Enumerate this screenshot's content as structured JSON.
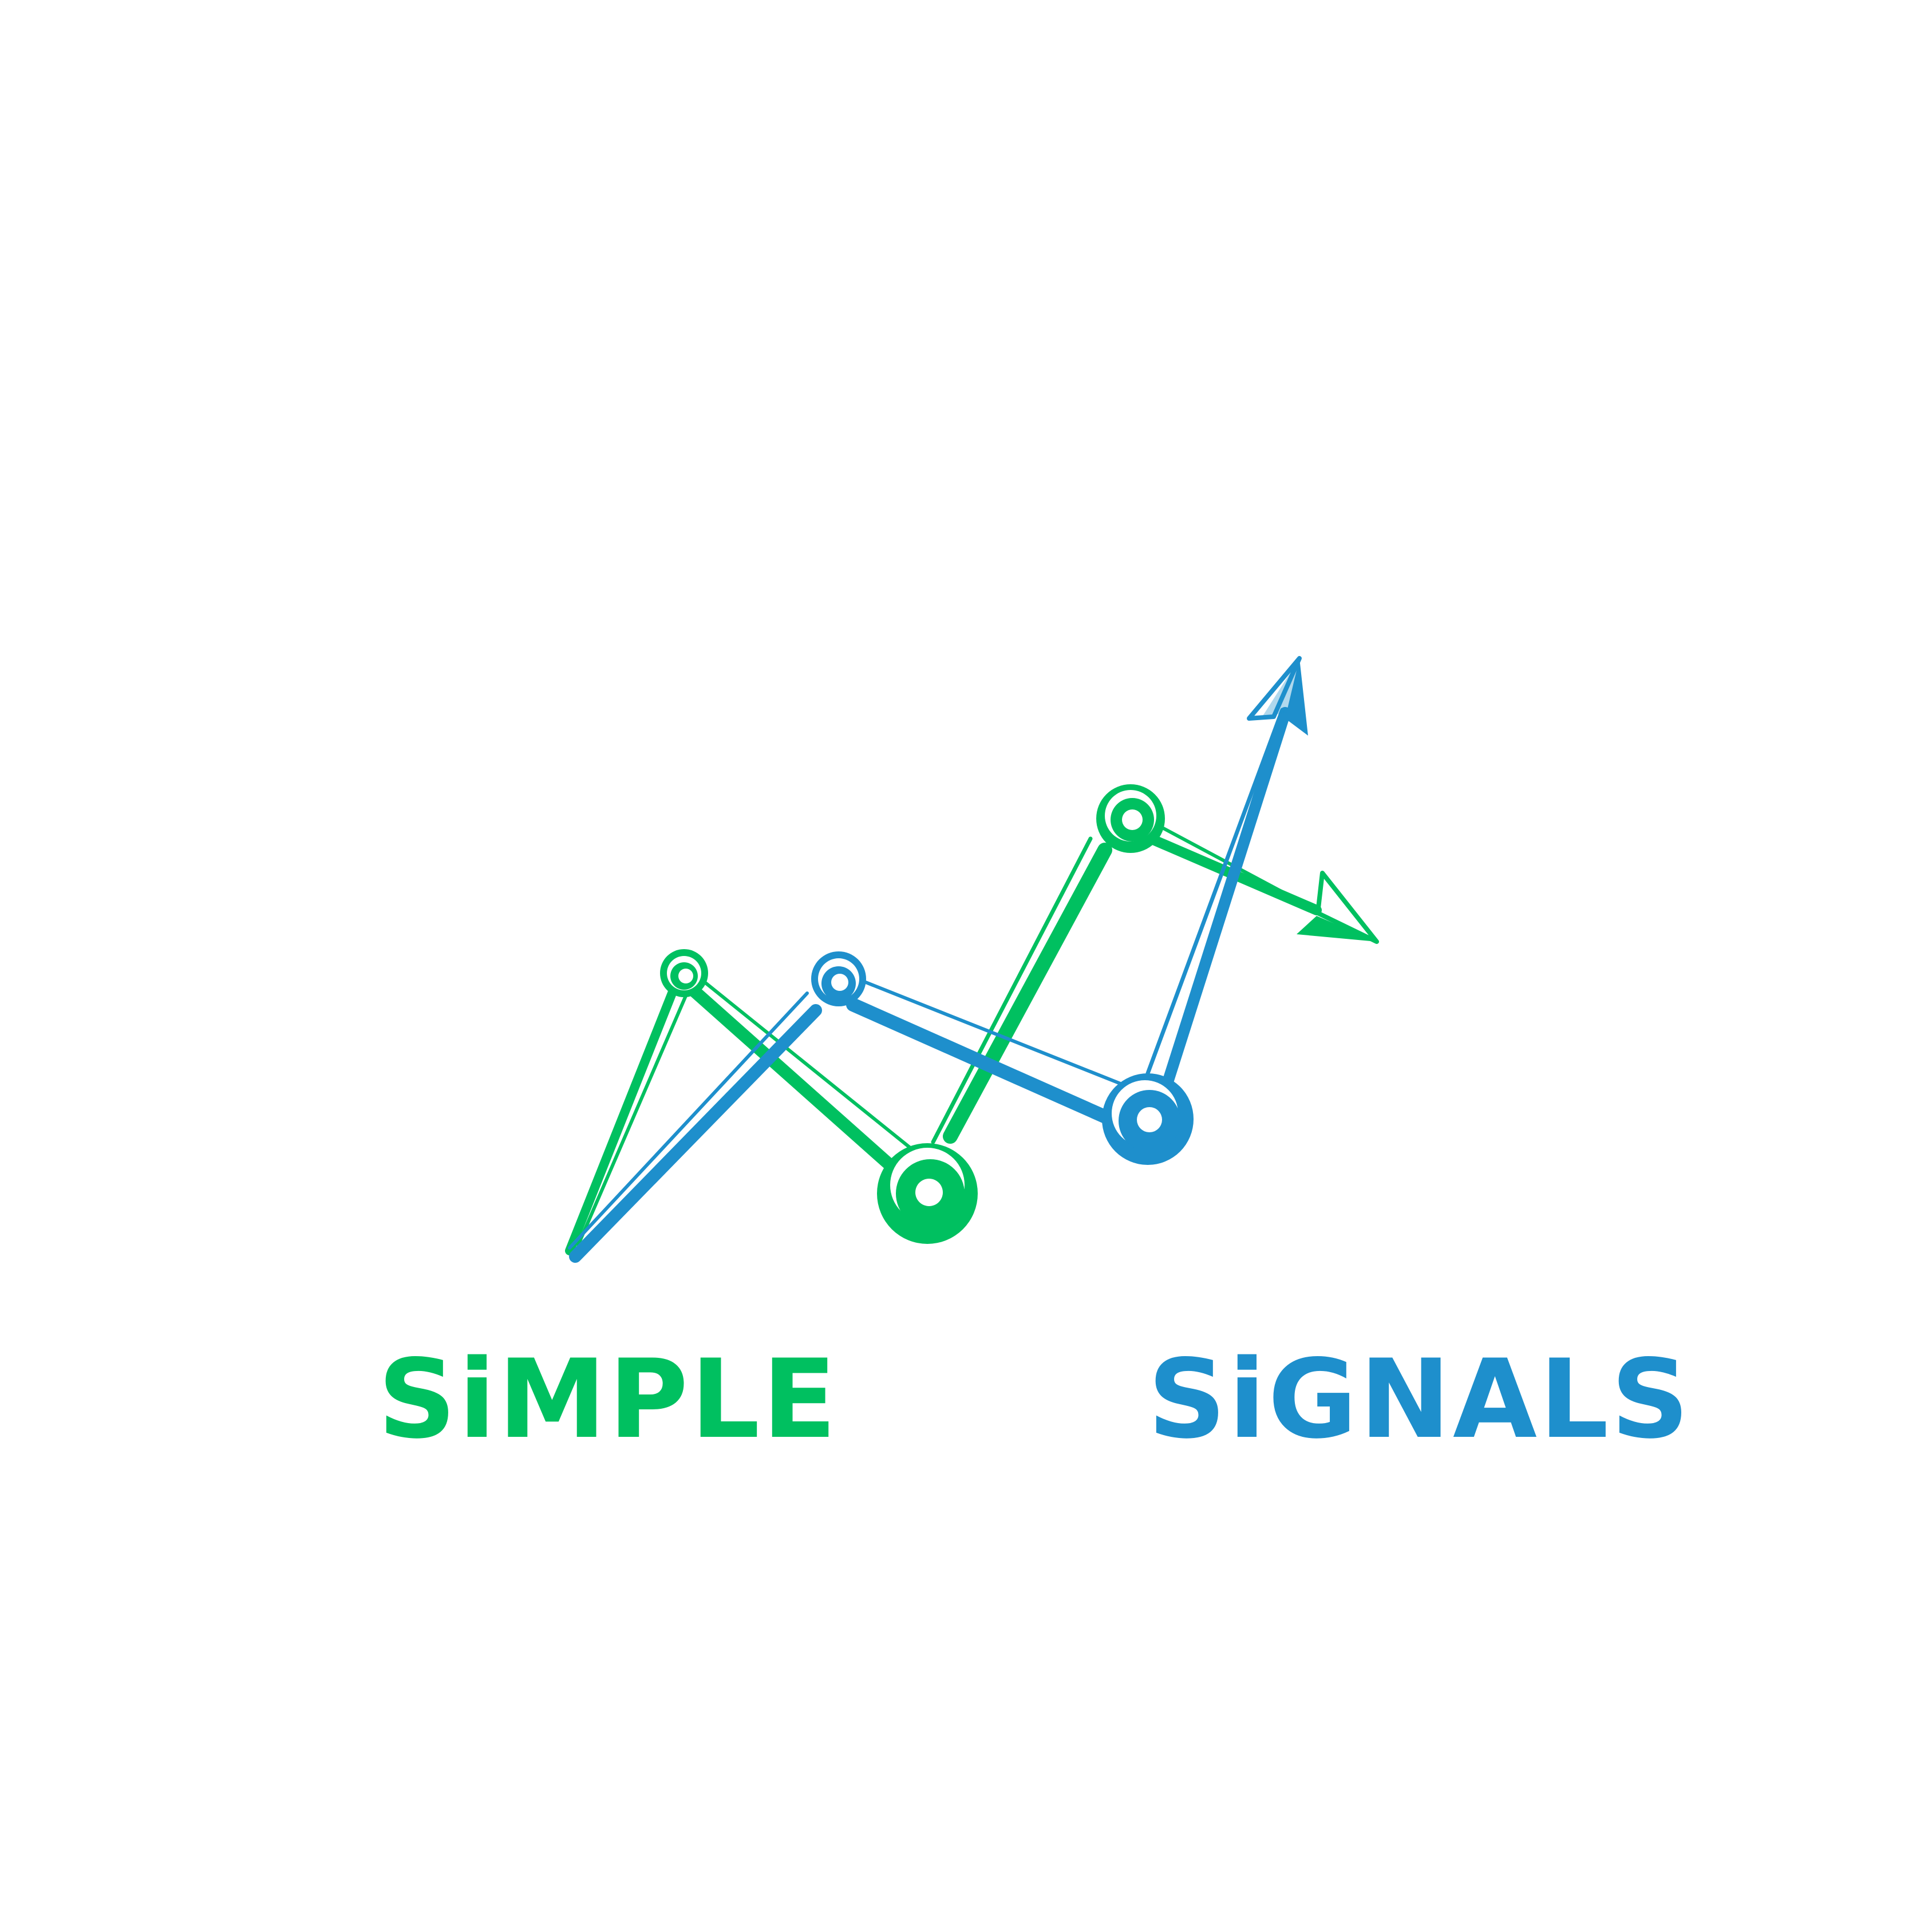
{
  "brand": {
    "word_left": "SiMPLE",
    "word_right": "SiGNALS"
  },
  "colors": {
    "green": "#00c060",
    "blue": "#1e8fcc",
    "background": "#ffffff"
  },
  "logo": {
    "icon": "rising-signal-chart-icon"
  }
}
